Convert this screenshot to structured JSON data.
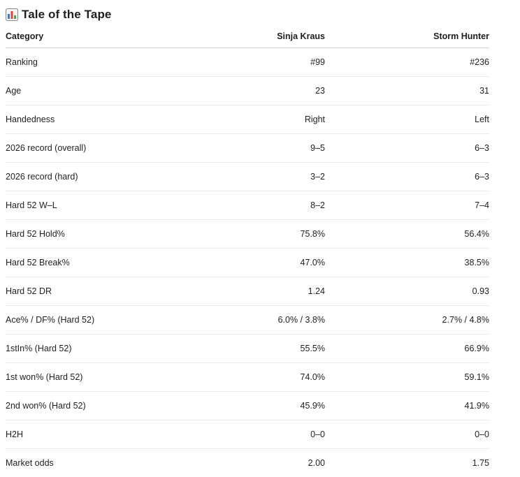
{
  "title": "Tale of the Tape",
  "title_icon": "bar-chart-icon",
  "columns": {
    "category": "Category",
    "player_a": "Sinja Kraus",
    "player_b": "Storm Hunter"
  },
  "rows": [
    {
      "category": "Ranking",
      "a": "#99",
      "b": "#236"
    },
    {
      "category": "Age",
      "a": "23",
      "b": "31"
    },
    {
      "category": "Handedness",
      "a": "Right",
      "b": "Left"
    },
    {
      "category": "2026 record (overall)",
      "a": "9–5",
      "b": "6–3"
    },
    {
      "category": "2026 record (hard)",
      "a": "3–2",
      "b": "6–3"
    },
    {
      "category": "Hard 52 W–L",
      "a": "8–2",
      "b": "7–4"
    },
    {
      "category": "Hard 52 Hold%",
      "a": "75.8%",
      "b": "56.4%"
    },
    {
      "category": "Hard 52 Break%",
      "a": "47.0%",
      "b": "38.5%"
    },
    {
      "category": "Hard 52 DR",
      "a": "1.24",
      "b": "0.93"
    },
    {
      "category": "Ace% / DF% (Hard 52)",
      "a": "6.0% / 3.8%",
      "b": "2.7% / 4.8%"
    },
    {
      "category": "1stIn% (Hard 52)",
      "a": "55.5%",
      "b": "66.9%"
    },
    {
      "category": "1st won% (Hard 52)",
      "a": "74.0%",
      "b": "59.1%"
    },
    {
      "category": "2nd won% (Hard 52)",
      "a": "45.9%",
      "b": "41.9%"
    },
    {
      "category": "H2H",
      "a": "0–0",
      "b": "0–0"
    },
    {
      "category": "Market odds",
      "a": "2.00",
      "b": "1.75"
    }
  ]
}
